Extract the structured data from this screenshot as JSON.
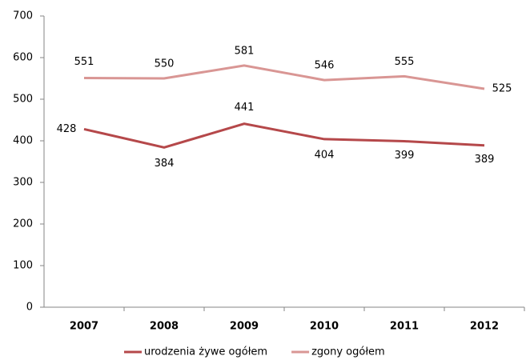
{
  "chart_data": {
    "type": "line",
    "categories": [
      "2007",
      "2008",
      "2009",
      "2010",
      "2011",
      "2012"
    ],
    "series": [
      {
        "name": "urodzenia żywe ogółem",
        "color": "#b5484a",
        "values": [
          428,
          384,
          441,
          404,
          399,
          389
        ]
      },
      {
        "name": "zgony ogółem",
        "color": "#d99694",
        "values": [
          551,
          550,
          581,
          546,
          555,
          525
        ]
      }
    ],
    "ylim": [
      0,
      700
    ],
    "yticks": [
      0,
      100,
      200,
      300,
      400,
      500,
      600,
      700
    ],
    "grid": false
  }
}
